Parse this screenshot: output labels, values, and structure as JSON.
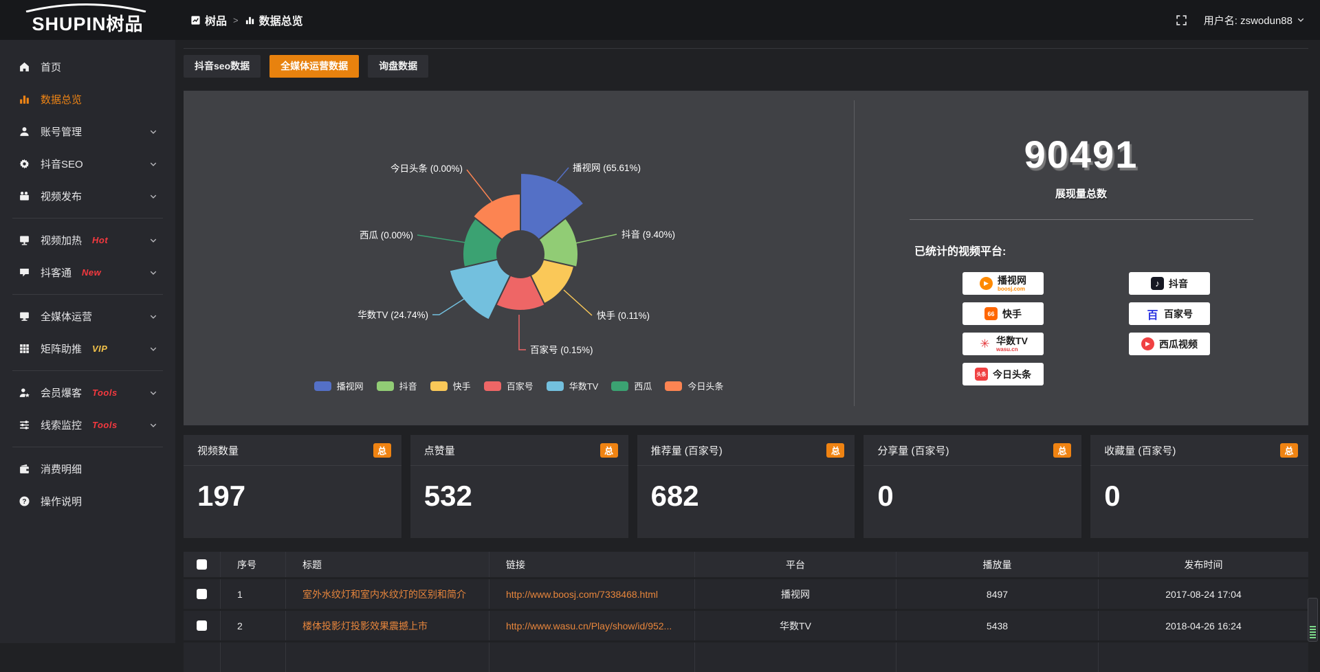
{
  "topbar": {
    "logo_main": "SHUPIN",
    "logo_suffix": "树品",
    "breadcrumb": [
      "树品",
      "数据总览"
    ],
    "breadcrumb_sep": ">",
    "username": "用户名: zswodun88"
  },
  "sidebar": {
    "items": [
      {
        "label": "首页",
        "icon": "home-icon"
      },
      {
        "label": "数据总览",
        "icon": "bar-chart-icon",
        "active": true
      },
      {
        "label": "账号管理",
        "icon": "user-icon",
        "chevron": true
      },
      {
        "label": "抖音SEO",
        "icon": "gear-icon",
        "chevron": true
      },
      {
        "label": "视频发布",
        "icon": "video-camera-icon",
        "chevron": true
      },
      {
        "divider": true
      },
      {
        "label": "视频加热",
        "icon": "screen-play-icon",
        "badge": "Hot",
        "badge_color": "#f5393f",
        "chevron": true
      },
      {
        "label": "抖客通",
        "icon": "chat-icon",
        "badge": "New",
        "badge_color": "#f5393f",
        "chevron": true
      },
      {
        "divider": true
      },
      {
        "label": "全媒体运营",
        "icon": "monitor-icon",
        "chevron": true
      },
      {
        "label": "矩阵助推",
        "icon": "grid-icon",
        "badge": "VIP",
        "badge_color": "#f2c24a",
        "chevron": true
      },
      {
        "divider": true
      },
      {
        "label": "会员爆客",
        "icon": "user-star-icon",
        "badge": "Tools",
        "badge_color": "#f5393f",
        "chevron": true
      },
      {
        "label": "线索监控",
        "icon": "sliders-icon",
        "badge": "Tools",
        "badge_color": "#f5393f",
        "chevron": true
      },
      {
        "divider": true
      },
      {
        "label": "消费明细",
        "icon": "wallet-icon"
      },
      {
        "label": "操作说明",
        "icon": "question-icon"
      }
    ]
  },
  "tabs": [
    {
      "label": "抖音seo数据",
      "active": false
    },
    {
      "label": "全媒体运营数据",
      "active": true
    },
    {
      "label": "询盘数据",
      "active": false
    }
  ],
  "chart_data": {
    "type": "pie",
    "subtype": "rose",
    "labels": [
      "播视网",
      "抖音",
      "快手",
      "百家号",
      "华数TV",
      "西瓜",
      "今日头条"
    ],
    "values_percent": [
      65.61,
      9.4,
      0.11,
      0.15,
      24.74,
      0.0,
      0.0
    ],
    "colors": [
      "#5470c6",
      "#91cc75",
      "#fac858",
      "#ee6666",
      "#73c0de",
      "#3ba272",
      "#fc8452"
    ],
    "legend": [
      "播视网",
      "抖音",
      "快手",
      "百家号",
      "华数TV",
      "西瓜",
      "今日头条"
    ],
    "legend_position": "bottom",
    "label_format": "{name} ({percent}%)"
  },
  "summary": {
    "total_value": "90491",
    "total_label": "展现量总数",
    "platforms_label": "已统计的视频平台:",
    "platforms": [
      {
        "name": "播视网",
        "sub": "boosj.com",
        "icon": "boosj-play-icon",
        "accent": "#ff8a00"
      },
      {
        "name": "抖音",
        "icon": "douyin-note-icon",
        "accent": "#161823"
      },
      {
        "name": "快手",
        "icon": "kuaishou-icon",
        "accent": "#ff6600"
      },
      {
        "name": "百家号",
        "icon": "baijiahao-icon",
        "accent": "#2932e1"
      },
      {
        "name": "华数TV",
        "sub": "wasu.cn",
        "icon": "wasu-burst-icon",
        "accent": "#e4393c"
      },
      {
        "name": "西瓜视频",
        "icon": "xigua-play-icon",
        "accent": "#f04142"
      },
      {
        "name": "今日头条",
        "icon": "toutiao-icon",
        "accent": "#f04142"
      }
    ]
  },
  "stat_cards": [
    {
      "label": "视频数量",
      "badge": "总",
      "value": "197"
    },
    {
      "label": "点赞量",
      "badge": "总",
      "value": "532"
    },
    {
      "label": "推荐量 (百家号)",
      "badge": "总",
      "value": "682"
    },
    {
      "label": "分享量 (百家号)",
      "badge": "总",
      "value": "0"
    },
    {
      "label": "收藏量 (百家号)",
      "badge": "总",
      "value": "0"
    }
  ],
  "table": {
    "columns": [
      "序号",
      "标题",
      "链接",
      "平台",
      "播放量",
      "发布时间"
    ],
    "rows": [
      {
        "seq": "1",
        "title": "室外水纹灯和室内水纹灯的区别和简介",
        "link": "http://www.boosj.com/7338468.html",
        "platform": "播视网",
        "plays": "8497",
        "time": "2017-08-24 17:04"
      },
      {
        "seq": "2",
        "title": "楼体投影灯投影效果震撼上市",
        "link": "http://www.wasu.cn/Play/show/id/952...",
        "platform": "华数TV",
        "plays": "5438",
        "time": "2018-04-26 16:24"
      },
      {
        "seq": "",
        "title": "",
        "link": "",
        "platform": "",
        "plays": "",
        "time": ""
      }
    ]
  }
}
